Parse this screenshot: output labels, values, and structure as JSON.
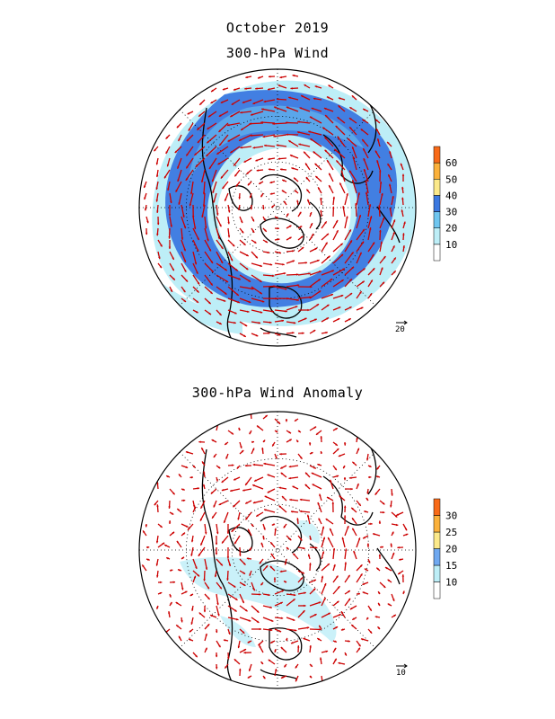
{
  "titles": {
    "month": "October 2019",
    "panel1": "300-hPa Wind",
    "panel2": "300-hPa Wind Anomaly"
  },
  "panel1": {
    "name": "wind",
    "colorbar": {
      "levels": [
        "10",
        "20",
        "30",
        "40",
        "50",
        "60"
      ],
      "colors": [
        "#ffffff",
        "#bdeef7",
        "#6fc6f0",
        "#3b78e0",
        "#fbe98a",
        "#fbb13b",
        "#f86a18"
      ]
    },
    "reference_vector": "20"
  },
  "panel2": {
    "name": "anomaly",
    "colorbar": {
      "levels": [
        "10",
        "15",
        "20",
        "25",
        "30"
      ],
      "colors": [
        "#ffffff",
        "#bdeef7",
        "#6fa8f0",
        "#fbe98a",
        "#fbb13b",
        "#f86a18"
      ]
    },
    "reference_vector": "10"
  },
  "style": {
    "arrow_color": "#cc0000",
    "coast_color": "#000000"
  }
}
